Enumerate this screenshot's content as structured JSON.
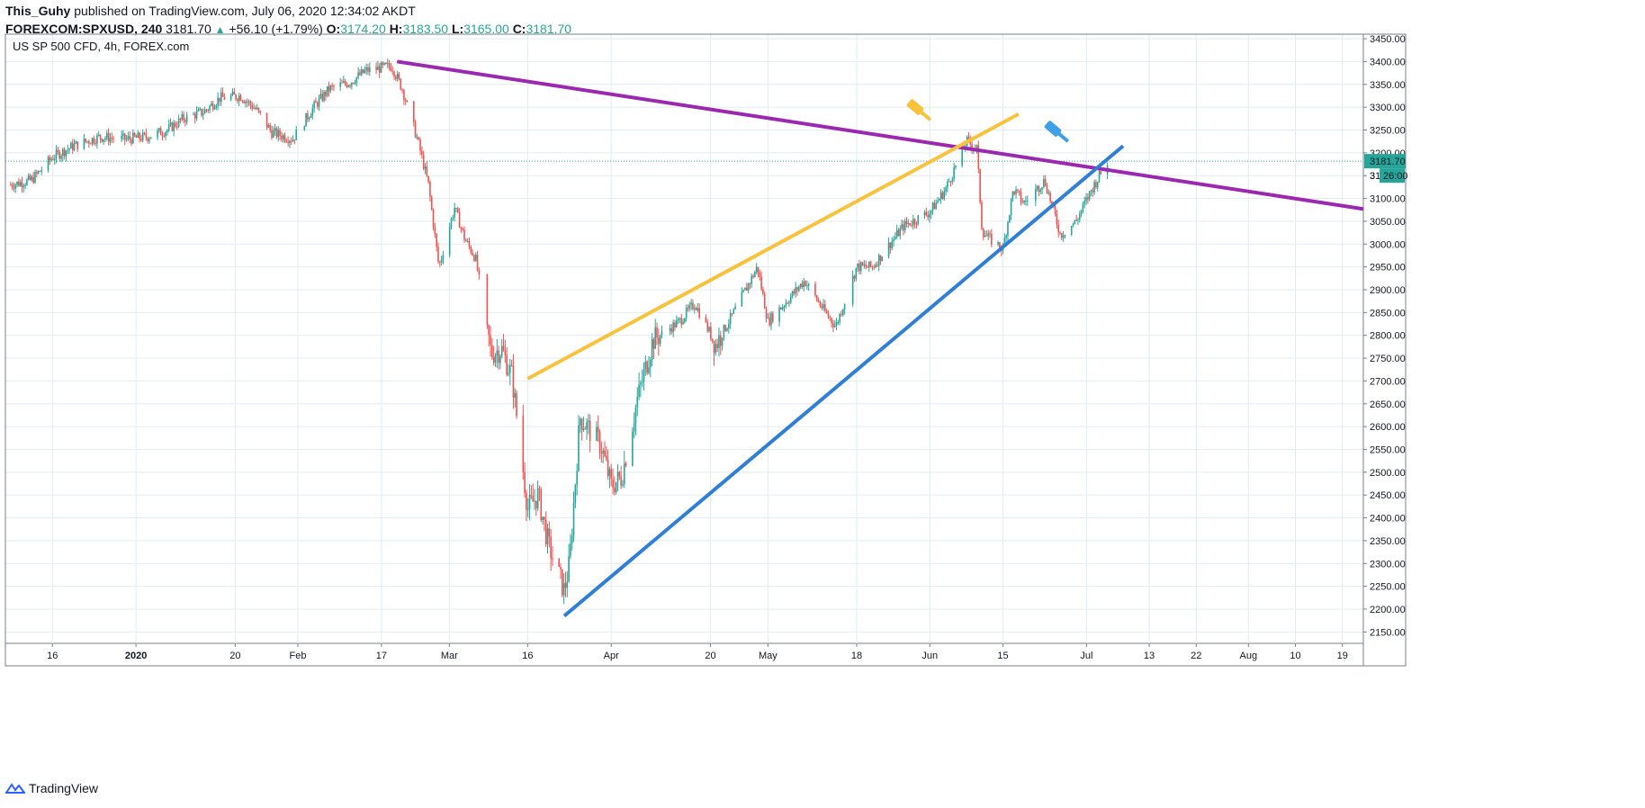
{
  "header": {
    "author": "This_Guhy",
    "published_text": "published on TradingView.com, July 06, 2020 12:34:02 AKDT",
    "symbol": "FOREXCOM:SPXUSD, 240",
    "last": "3181.70",
    "change": "+56.10 (+1.79%)",
    "o_label": "O:",
    "o_value": "3174.20",
    "h_label": "H:",
    "h_value": "3183.50",
    "l_label": "L:",
    "l_value": "3165.00",
    "c_label": "C:",
    "c_value": "3181.70"
  },
  "footer": {
    "brand": "TradingView"
  },
  "colors": {
    "up": "#26a69a",
    "down": "#ef5350",
    "grid": "#e1ecf2",
    "purple": "#9c27b0",
    "yellow": "#f9c23c",
    "blue": "#2f7fd6",
    "last_bg": "#26a69a"
  },
  "chart_data": {
    "type": "line",
    "title": "US SP 500 CFD, 4h, FOREX.com",
    "ylim": [
      2125,
      3460
    ],
    "y_ticks": [
      3450,
      3400,
      3350,
      3300,
      3250,
      3200,
      3150,
      3100,
      3050,
      3000,
      2950,
      2900,
      2850,
      2800,
      2750,
      2700,
      2650,
      2600,
      2550,
      2500,
      2450,
      2400,
      2350,
      2300,
      2250,
      2200,
      2150
    ],
    "y_tick_labels": [
      "3450.00",
      "3400.00",
      "3350.00",
      "3300.00",
      "3250.00",
      "3200.00",
      "3150.00",
      "3100.00",
      "3050.00",
      "3000.00",
      "2950.00",
      "2900.00",
      "2850.00",
      "2800.00",
      "2750.00",
      "2700.00",
      "2650.00",
      "2600.00",
      "2550.00",
      "2500.00",
      "2450.00",
      "2400.00",
      "2350.00",
      "2300.00",
      "2250.00",
      "2200.00",
      "2150.00"
    ],
    "xlim": [
      "2019-12-07",
      "2020-08-23"
    ],
    "x_ticks": [
      {
        "date": "2019-12-16",
        "label": "16"
      },
      {
        "date": "2020-01-01",
        "label": "2020"
      },
      {
        "date": "2020-01-20",
        "label": "20"
      },
      {
        "date": "2020-02-01",
        "label": "Feb"
      },
      {
        "date": "2020-02-17",
        "label": "17"
      },
      {
        "date": "2020-03-01",
        "label": "Mar"
      },
      {
        "date": "2020-03-16",
        "label": "16"
      },
      {
        "date": "2020-04-01",
        "label": "Apr"
      },
      {
        "date": "2020-04-20",
        "label": "20"
      },
      {
        "date": "2020-05-01",
        "label": "May"
      },
      {
        "date": "2020-05-18",
        "label": "18"
      },
      {
        "date": "2020-06-01",
        "label": "Jun"
      },
      {
        "date": "2020-06-15",
        "label": "15"
      },
      {
        "date": "2020-07-01",
        "label": "Jul"
      },
      {
        "date": "2020-07-13",
        "label": "13"
      },
      {
        "date": "2020-07-22",
        "label": "22"
      },
      {
        "date": "2020-08-01",
        "label": "Aug"
      },
      {
        "date": "2020-08-10",
        "label": "10"
      },
      {
        "date": "2020-08-19",
        "label": "19"
      }
    ],
    "price_series": {
      "x": [
        "2019-12-08",
        "2019-12-12",
        "2019-12-16",
        "2019-12-20",
        "2019-12-25",
        "2019-12-30",
        "2020-01-03",
        "2020-01-07",
        "2020-01-10",
        "2020-01-14",
        "2020-01-17",
        "2020-01-21",
        "2020-01-24",
        "2020-01-27",
        "2020-01-31",
        "2020-02-04",
        "2020-02-07",
        "2020-02-11",
        "2020-02-14",
        "2020-02-19",
        "2020-02-21",
        "2020-02-24",
        "2020-02-26",
        "2020-02-28",
        "2020-03-02",
        "2020-03-04",
        "2020-03-06",
        "2020-03-09",
        "2020-03-11",
        "2020-03-13",
        "2020-03-16",
        "2020-03-18",
        "2020-03-20",
        "2020-03-23",
        "2020-03-24",
        "2020-03-26",
        "2020-03-30",
        "2020-04-01",
        "2020-04-03",
        "2020-04-06",
        "2020-04-09",
        "2020-04-14",
        "2020-04-17",
        "2020-04-21",
        "2020-04-24",
        "2020-04-29",
        "2020-05-01",
        "2020-05-05",
        "2020-05-08",
        "2020-05-12",
        "2020-05-14",
        "2020-05-18",
        "2020-05-21",
        "2020-05-27",
        "2020-06-01",
        "2020-06-04",
        "2020-06-08",
        "2020-06-10",
        "2020-06-11",
        "2020-06-12",
        "2020-06-15",
        "2020-06-17",
        "2020-06-19",
        "2020-06-23",
        "2020-06-26",
        "2020-06-29",
        "2020-07-02",
        "2020-07-05"
      ],
      "y": [
        3130,
        3140,
        3190,
        3215,
        3235,
        3230,
        3235,
        3250,
        3275,
        3290,
        3320,
        3325,
        3295,
        3245,
        3230,
        3300,
        3340,
        3355,
        3380,
        3390,
        3340,
        3225,
        3130,
        2950,
        3080,
        3010,
        2970,
        2760,
        2770,
        2710,
        2420,
        2450,
        2340,
        2240,
        2300,
        2620,
        2560,
        2470,
        2490,
        2660,
        2790,
        2830,
        2870,
        2780,
        2840,
        2950,
        2830,
        2880,
        2920,
        2850,
        2820,
        2950,
        2950,
        3040,
        3070,
        3120,
        3225,
        3210,
        3030,
        3015,
        2990,
        3120,
        3090,
        3140,
        3020,
        3050,
        3120,
        3180
      ]
    },
    "trendlines": [
      {
        "name": "purple",
        "points": [
          [
            "2020-02-20",
            3400
          ],
          [
            "2020-08-23",
            3077
          ]
        ]
      },
      {
        "name": "yellow",
        "points": [
          [
            "2020-03-16",
            2705
          ],
          [
            "2020-06-18",
            3285
          ]
        ]
      },
      {
        "name": "blue",
        "points": [
          [
            "2020-03-23",
            2185
          ],
          [
            "2020-07-08",
            3215
          ]
        ]
      }
    ],
    "last_price": 3181.7,
    "last_price_label": "3181.70",
    "countdown_label": "26:00",
    "hidden_label_fragment": "3"
  }
}
